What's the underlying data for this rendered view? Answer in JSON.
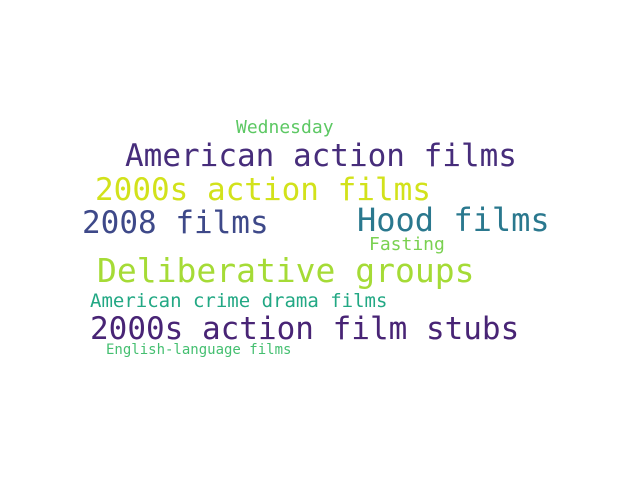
{
  "words": [
    {
      "id": "wednesday",
      "text": "Wednesday",
      "color": "#5cc863"
    },
    {
      "id": "american",
      "text": "American action films",
      "color": "#472d7b"
    },
    {
      "id": "2000s",
      "text": "2000s action films",
      "color": "#d2e21b"
    },
    {
      "id": "hood",
      "text": "Hood films",
      "color": "#2a788e"
    },
    {
      "id": "2008",
      "text": "2008 films",
      "color": "#3e4989"
    },
    {
      "id": "fasting",
      "text": "Fasting",
      "color": "#7ad151"
    },
    {
      "id": "deliberative",
      "text": "Deliberative groups",
      "color": "#a5db36"
    },
    {
      "id": "crime",
      "text": "American crime drama films",
      "color": "#22a884"
    },
    {
      "id": "stubs",
      "text": "2000s action film stubs",
      "color": "#482475"
    },
    {
      "id": "english",
      "text": "English-language films",
      "color": "#44bf70"
    }
  ]
}
